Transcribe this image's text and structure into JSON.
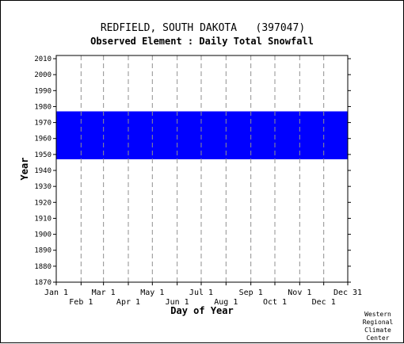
{
  "chart_data": {
    "type": "heatmap",
    "title": "REDFIELD, SOUTH DAKOTA   (397047)",
    "subtitle": "Observed Element : Daily Total Snowfall",
    "xlabel": "Day of Year",
    "ylabel": "Year",
    "ylim": [
      1870,
      2012
    ],
    "xlim": [
      1,
      365
    ],
    "yticks": [
      1870,
      1880,
      1890,
      1900,
      1910,
      1920,
      1930,
      1940,
      1950,
      1960,
      1970,
      1980,
      1990,
      2000,
      2010
    ],
    "xticks_top": [
      {
        "label": "Jan 1",
        "day": 1
      },
      {
        "label": "Mar 1",
        "day": 60
      },
      {
        "label": "May 1",
        "day": 121
      },
      {
        "label": "Jul 1",
        "day": 182
      },
      {
        "label": "Sep 1",
        "day": 244
      },
      {
        "label": "Nov 1",
        "day": 305
      },
      {
        "label": "Dec 31",
        "day": 365
      }
    ],
    "xticks_bottom": [
      {
        "label": "Feb 1",
        "day": 32
      },
      {
        "label": "Apr 1",
        "day": 91
      },
      {
        "label": "Jun 1",
        "day": 152
      },
      {
        "label": "Aug 1",
        "day": 213
      },
      {
        "label": "Oct 1",
        "day": 274
      },
      {
        "label": "Dec 1",
        "day": 335
      }
    ],
    "grid": true,
    "color": "#0000ff",
    "coverage": [
      {
        "day_start": 1,
        "day_end": 365,
        "year_start": 1947,
        "year_end": 1977
      }
    ]
  },
  "credit": [
    "Western",
    "Regional",
    "Climate",
    "Center"
  ]
}
